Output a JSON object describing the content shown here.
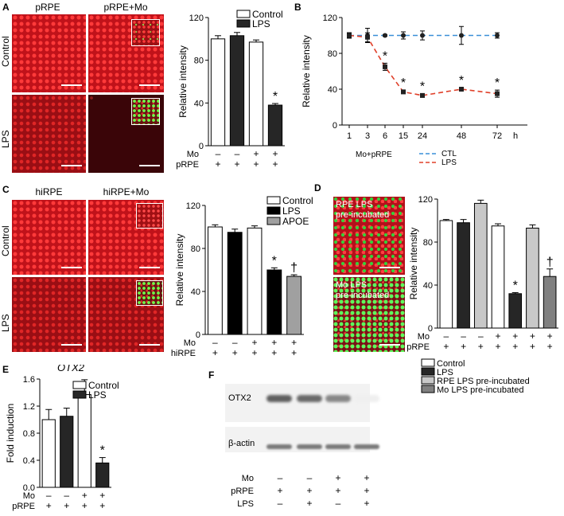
{
  "panels": {
    "A": {
      "letter": "A",
      "col_labels": [
        "pRPE",
        "pRPE+Mo"
      ],
      "row_labels": [
        "Control",
        "LPS"
      ]
    },
    "C": {
      "letter": "C",
      "col_labels": [
        "hiRPE",
        "hiRPE+Mo"
      ],
      "row_labels": [
        "Control",
        "LPS"
      ]
    },
    "D": {
      "letter": "D",
      "image_labels": [
        "RPE LPS\npre-incubated",
        "Mo LPS\npre-incubated"
      ]
    },
    "B": {
      "letter": "B"
    },
    "E": {
      "letter": "E"
    },
    "F": {
      "letter": "F",
      "bands": [
        "OTX2",
        "β-actin"
      ],
      "condition_rows": [
        {
          "label": "Mo",
          "marks": [
            "–",
            "–",
            "+",
            "+"
          ]
        },
        {
          "label": "pRPE",
          "marks": [
            "+",
            "+",
            "+",
            "+"
          ]
        },
        {
          "label": "LPS",
          "marks": [
            "–",
            "+",
            "–",
            "+"
          ]
        }
      ],
      "otx2_band_intensity": [
        0.8,
        0.75,
        0.6,
        0.08
      ]
    }
  },
  "chart_data": [
    {
      "id": "A",
      "type": "bar",
      "ylabel": "Relative intensity",
      "ylim": [
        0,
        120
      ],
      "yticks": [
        0,
        40,
        80,
        120
      ],
      "legend": [
        "Control",
        "LPS"
      ],
      "colors": {
        "Control": "#ffffff",
        "LPS": "#262626"
      },
      "bars": [
        {
          "series": "Control",
          "value": 100,
          "err": 3
        },
        {
          "series": "LPS",
          "value": 103,
          "err": 3
        },
        {
          "series": "Control",
          "value": 97,
          "err": 2
        },
        {
          "series": "LPS",
          "value": 38,
          "err": 1.5,
          "mark": "*"
        }
      ],
      "condition_rows": [
        {
          "label": "Mo",
          "marks": [
            "–",
            "–",
            "+",
            "+"
          ]
        },
        {
          "label": "pRPE",
          "marks": [
            "+",
            "+",
            "+",
            "+"
          ]
        }
      ]
    },
    {
      "id": "B",
      "type": "line",
      "ylabel": "Relative intensity",
      "ylim": [
        0,
        120
      ],
      "yticks": [
        0,
        40,
        80,
        120
      ],
      "x_tick_labels": [
        "1",
        "3",
        "6",
        "15",
        "24",
        "48",
        "72"
      ],
      "x_unit": "h",
      "xlabel": "Mo+pRPE",
      "legend_position": "bottom",
      "series": [
        {
          "name": "CTL",
          "color": "#3a8fd8",
          "values": [
            100,
            100,
            100,
            100,
            100,
            100,
            100
          ],
          "err": [
            3,
            8,
            1,
            4,
            5,
            10,
            3
          ]
        },
        {
          "name": "LPS",
          "color": "#e0402a",
          "values": [
            100,
            98,
            65,
            37,
            33,
            40,
            35
          ],
          "err": [
            3,
            5,
            4,
            2,
            2,
            2,
            4
          ]
        }
      ],
      "marks": [
        "",
        "",
        "*",
        "*",
        "*",
        "*",
        "*"
      ]
    },
    {
      "id": "C",
      "type": "bar",
      "ylabel": "Relative intensity",
      "ylim": [
        0,
        120
      ],
      "yticks": [
        0,
        40,
        80,
        120
      ],
      "legend": [
        "Control",
        "LPS",
        "APOE"
      ],
      "colors": {
        "Control": "#ffffff",
        "LPS": "#000000",
        "APOE": "#a0a0a0"
      },
      "bars": [
        {
          "series": "Control",
          "value": 100,
          "err": 2
        },
        {
          "series": "LPS",
          "value": 95,
          "err": 3
        },
        {
          "series": "Control",
          "value": 99,
          "err": 2
        },
        {
          "series": "LPS",
          "value": 60,
          "err": 2,
          "mark": "*"
        },
        {
          "series": "APOE",
          "value": 54,
          "err": 1.5,
          "mark": "†"
        }
      ],
      "condition_rows": [
        {
          "label": "Mo",
          "marks": [
            "–",
            "–",
            "+",
            "+",
            "+"
          ]
        },
        {
          "label": "hiRPE",
          "marks": [
            "+",
            "+",
            "+",
            "+",
            "+"
          ]
        }
      ]
    },
    {
      "id": "D",
      "type": "bar",
      "ylabel": "Relative intensity",
      "ylim": [
        0,
        120
      ],
      "yticks": [
        0,
        40,
        80,
        120
      ],
      "legend": [
        "Control",
        "LPS",
        "RPE LPS pre-incubated",
        "Mo LPS pre-incubated"
      ],
      "colors": {
        "Control": "#ffffff",
        "LPS": "#262626",
        "RPE LPS pre-incubated": "#c8c8c8",
        "Mo LPS pre-incubated": "#808080"
      },
      "bars": [
        {
          "series": "Control",
          "value": 100,
          "err": 1
        },
        {
          "series": "LPS",
          "value": 98,
          "err": 3
        },
        {
          "series": "RPE LPS pre-incubated",
          "value": 116,
          "err": 3
        },
        {
          "series": "Control",
          "value": 95,
          "err": 2
        },
        {
          "series": "LPS",
          "value": 32,
          "err": 1,
          "mark": "*"
        },
        {
          "series": "RPE LPS pre-incubated",
          "value": 93,
          "err": 3
        },
        {
          "series": "Mo LPS pre-incubated",
          "value": 48,
          "err": 7,
          "mark": "†"
        }
      ],
      "condition_rows": [
        {
          "label": "Mo",
          "marks": [
            "–",
            "–",
            "–",
            "+",
            "+",
            "+",
            "+"
          ]
        },
        {
          "label": "pRPE",
          "marks": [
            "+",
            "+",
            "+",
            "+",
            "+",
            "+",
            "+"
          ]
        }
      ]
    },
    {
      "id": "E",
      "type": "bar",
      "title": "OTX2",
      "ylabel": "Fold induction",
      "ylim": [
        0,
        1.6
      ],
      "yticks": [
        0.0,
        0.4,
        0.8,
        1.2,
        1.6
      ],
      "legend": [
        "Control",
        "LPS"
      ],
      "colors": {
        "Control": "#ffffff",
        "LPS": "#262626"
      },
      "bars": [
        {
          "series": "Control",
          "value": 1.0,
          "err": 0.15
        },
        {
          "series": "LPS",
          "value": 1.05,
          "err": 0.12
        },
        {
          "series": "Control",
          "value": 1.37,
          "err": 0.22
        },
        {
          "series": "LPS",
          "value": 0.36,
          "err": 0.08,
          "mark": "*"
        }
      ],
      "condition_rows": [
        {
          "label": "Mo",
          "marks": [
            "–",
            "–",
            "+",
            "+"
          ]
        },
        {
          "label": "pRPE",
          "marks": [
            "+",
            "+",
            "+",
            "+"
          ]
        }
      ]
    }
  ]
}
